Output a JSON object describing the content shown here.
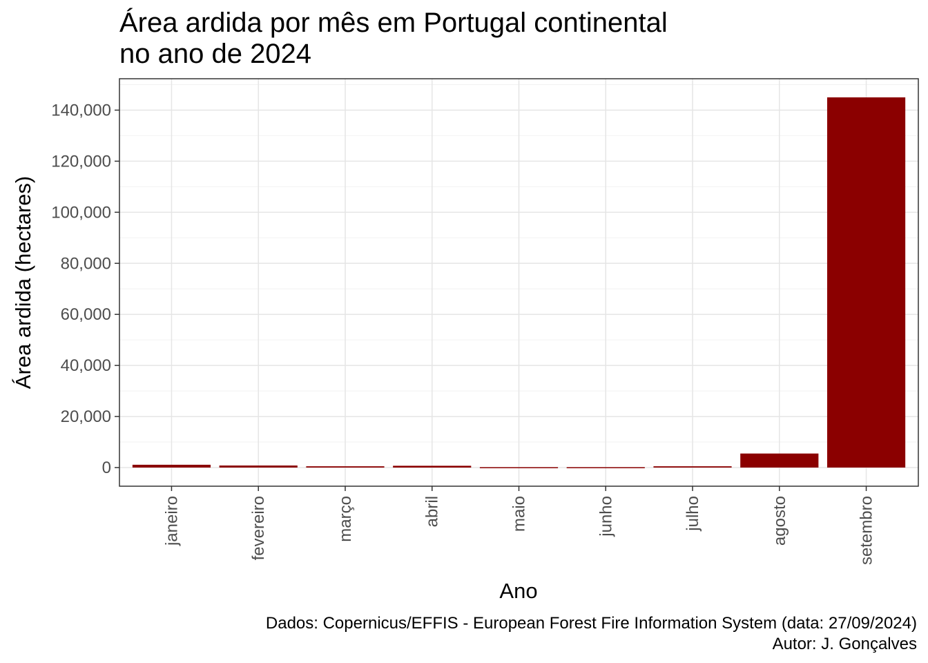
{
  "chart_data": {
    "type": "bar",
    "title": [
      "Área ardida por mês em Portugal continental",
      "no ano de 2024"
    ],
    "xlabel": "Ano",
    "ylabel": "Área ardida (hectares)",
    "categories": [
      "janeiro",
      "fevereiro",
      "março",
      "abril",
      "maio",
      "junho",
      "julho",
      "agosto",
      "setembro"
    ],
    "values": [
      1100,
      800,
      500,
      700,
      150,
      150,
      500,
      5500,
      145000
    ],
    "ylim": [
      -7300,
      152300
    ],
    "yticks": [
      0,
      20000,
      40000,
      60000,
      80000,
      100000,
      120000,
      140000
    ],
    "ytick_labels": [
      "0",
      "20,000",
      "40,000",
      "60,000",
      "80,000",
      "100,000",
      "120,000",
      "140,000"
    ],
    "grid": true,
    "bar_color": "#8B0000",
    "caption": [
      "Dados: Copernicus/EFFIS - European Forest Fire Information System (data: 27/09/2024)",
      "Autor: J. Gonçalves"
    ]
  }
}
